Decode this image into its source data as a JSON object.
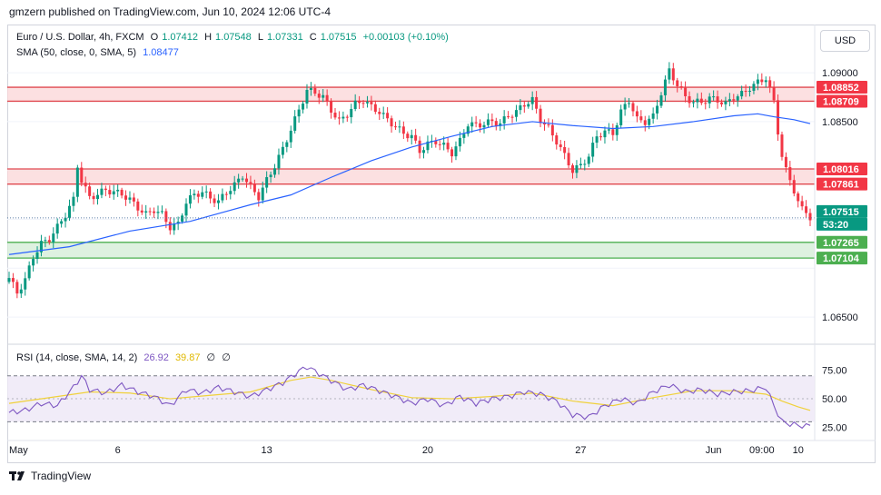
{
  "header": {
    "published_text": "gmzern published on TradingView.com, Jun 10, 2024 12:06 UTC-4"
  },
  "legend": {
    "symbol": "Euro / U.S. Dollar, 4h, FXCM",
    "open_label": "O",
    "open": "1.07412",
    "high_label": "H",
    "high": "1.07548",
    "low_label": "L",
    "low": "1.07331",
    "close_label": "C",
    "close": "1.07515",
    "change": "+0.00103 (+0.10%)",
    "sma_label": "SMA (50, close, 0, SMA, 5)",
    "sma_value": "1.08477",
    "rsi_label": "RSI (14, close, SMA, 14, 2)",
    "rsi_value": "26.92",
    "rsi_ma_value": "39.87",
    "rsi_extra1": "∅",
    "rsi_extra2": "∅"
  },
  "currency_button": "USD",
  "footer": {
    "brand": "TradingView"
  },
  "colors": {
    "up": "#089981",
    "down": "#f23645",
    "sma": "#2962ff",
    "resistance_fill": "#fbd5d7",
    "resistance_line": "#e0484f",
    "support_fill": "#d3ecd6",
    "support_line": "#4caf50",
    "rsi_line": "#7e57c2",
    "rsi_ma": "#f0d13a",
    "rsi_band": "#ede7f6"
  },
  "chart_data": [
    {
      "type": "candlestick",
      "title": "Euro / U.S. Dollar, 4h, FXCM",
      "ylim": [
        1.0625,
        1.0915
      ],
      "x_tick_labels": [
        "May",
        "6",
        "13",
        "20",
        "27",
        "Jun",
        "09:00",
        "10"
      ],
      "y_tick_labels": [
        "1.09000",
        "1.08500",
        "1.06500"
      ],
      "price_labels": [
        {
          "value": "1.08852",
          "kind": "resistance"
        },
        {
          "value": "1.08709",
          "kind": "resistance"
        },
        {
          "value": "1.08016",
          "kind": "resistance"
        },
        {
          "value": "1.07861",
          "kind": "resistance"
        },
        {
          "value": "1.07515",
          "kind": "current"
        },
        {
          "value": "53:20",
          "kind": "countdown"
        },
        {
          "value": "1.07265",
          "kind": "support"
        },
        {
          "value": "1.07104",
          "kind": "support"
        }
      ],
      "zones": [
        {
          "kind": "resistance",
          "top": 1.08852,
          "bottom": 1.08709
        },
        {
          "kind": "resistance",
          "top": 1.08016,
          "bottom": 1.07861
        },
        {
          "kind": "support",
          "top": 1.07265,
          "bottom": 1.07104
        }
      ],
      "current_price": 1.07515,
      "close_path": [
        [
          0,
          1.069
        ],
        [
          2,
          1.0675
        ],
        [
          4,
          1.0688
        ],
        [
          6,
          1.0712
        ],
        [
          8,
          1.0725
        ],
        [
          10,
          1.073
        ],
        [
          12,
          1.0742
        ],
        [
          14,
          1.0755
        ],
        [
          16,
          1.077
        ],
        [
          17,
          1.0805
        ],
        [
          18,
          1.079
        ],
        [
          20,
          1.0772
        ],
        [
          22,
          1.0776
        ],
        [
          24,
          1.078
        ],
        [
          26,
          1.0778
        ],
        [
          28,
          1.0776
        ],
        [
          30,
          1.077
        ],
        [
          32,
          1.0762
        ],
        [
          34,
          1.0755
        ],
        [
          36,
          1.076
        ],
        [
          38,
          1.0755
        ],
        [
          40,
          1.0742
        ],
        [
          42,
          1.0745
        ],
        [
          44,
          1.0768
        ],
        [
          46,
          1.0775
        ],
        [
          48,
          1.0778
        ],
        [
          50,
          1.0772
        ],
        [
          52,
          1.0768
        ],
        [
          54,
          1.0778
        ],
        [
          56,
          1.0785
        ],
        [
          58,
          1.0795
        ],
        [
          60,
          1.0783
        ],
        [
          62,
          1.0773
        ],
        [
          64,
          1.079
        ],
        [
          66,
          1.0805
        ],
        [
          68,
          1.0822
        ],
        [
          70,
          1.0842
        ],
        [
          72,
          1.0862
        ],
        [
          74,
          1.0882
        ],
        [
          76,
          1.088
        ],
        [
          78,
          1.0875
        ],
        [
          80,
          1.0862
        ],
        [
          82,
          1.085
        ],
        [
          84,
          1.0858
        ],
        [
          86,
          1.0868
        ],
        [
          88,
          1.0872
        ],
        [
          90,
          1.0865
        ],
        [
          92,
          1.086
        ],
        [
          94,
          1.0852
        ],
        [
          96,
          1.0845
        ],
        [
          98,
          1.0838
        ],
        [
          100,
          1.0835
        ],
        [
          102,
          1.082
        ],
        [
          104,
          1.0827
        ],
        [
          106,
          1.083
        ],
        [
          108,
          1.0825
        ],
        [
          110,
          1.0818
        ],
        [
          112,
          1.083
        ],
        [
          114,
          1.0848
        ],
        [
          116,
          1.0846
        ],
        [
          118,
          1.0848
        ],
        [
          120,
          1.085
        ],
        [
          122,
          1.0848
        ],
        [
          124,
          1.0856
        ],
        [
          126,
          1.086
        ],
        [
          128,
          1.0868
        ],
        [
          130,
          1.0872
        ],
        [
          132,
          1.0852
        ],
        [
          134,
          1.0843
        ],
        [
          136,
          1.083
        ],
        [
          138,
          1.0815
        ],
        [
          140,
          1.08
        ],
        [
          142,
          1.0805
        ],
        [
          144,
          1.0815
        ],
        [
          146,
          1.0835
        ],
        [
          148,
          1.084
        ],
        [
          150,
          1.0838
        ],
        [
          152,
          1.086
        ],
        [
          154,
          1.0872
        ],
        [
          156,
          1.0852
        ],
        [
          158,
          1.085
        ],
        [
          160,
          1.0855
        ],
        [
          162,
          1.088
        ],
        [
          164,
          1.0902
        ],
        [
          166,
          1.0888
        ],
        [
          168,
          1.0875
        ],
        [
          170,
          1.087
        ],
        [
          172,
          1.087
        ],
        [
          174,
          1.0874
        ],
        [
          176,
          1.0872
        ],
        [
          178,
          1.0868
        ],
        [
          180,
          1.0875
        ],
        [
          182,
          1.0878
        ],
        [
          184,
          1.0885
        ],
        [
          186,
          1.089
        ],
        [
          188,
          1.0895
        ],
        [
          190,
          1.087
        ],
        [
          191,
          1.084
        ],
        [
          192,
          1.0815
        ],
        [
          193,
          1.08
        ],
        [
          194,
          1.079
        ],
        [
          195,
          1.078
        ],
        [
          196,
          1.0768
        ],
        [
          197,
          1.076
        ],
        [
          198,
          1.0758
        ],
        [
          199,
          1.0752
        ]
      ],
      "sma_path": [
        [
          0,
          1.0714
        ],
        [
          15,
          1.0722
        ],
        [
          30,
          1.0738
        ],
        [
          45,
          1.0748
        ],
        [
          60,
          1.0765
        ],
        [
          70,
          1.0775
        ],
        [
          80,
          1.0793
        ],
        [
          90,
          1.081
        ],
        [
          100,
          1.0824
        ],
        [
          110,
          1.0835
        ],
        [
          120,
          1.0845
        ],
        [
          130,
          1.085
        ],
        [
          140,
          1.0846
        ],
        [
          150,
          1.0843
        ],
        [
          160,
          1.0845
        ],
        [
          170,
          1.085
        ],
        [
          180,
          1.0856
        ],
        [
          186,
          1.0858
        ],
        [
          190,
          1.0855
        ],
        [
          195,
          1.0852
        ],
        [
          199,
          1.0848
        ]
      ]
    },
    {
      "type": "line",
      "title": "RSI (14, close, SMA, 14, 2)",
      "ylim": [
        16,
        92
      ],
      "y_tick_labels": [
        "75.00",
        "50.00",
        "25.00"
      ],
      "bands": [
        70,
        30
      ],
      "series": [
        {
          "name": "RSI",
          "values": [
            [
              0,
              38
            ],
            [
              4,
              40
            ],
            [
              8,
              46
            ],
            [
              12,
              44
            ],
            [
              16,
              60
            ],
            [
              18,
              70
            ],
            [
              20,
              58
            ],
            [
              24,
              55
            ],
            [
              28,
              62
            ],
            [
              32,
              56
            ],
            [
              36,
              52
            ],
            [
              40,
              44
            ],
            [
              44,
              58
            ],
            [
              48,
              55
            ],
            [
              52,
              60
            ],
            [
              56,
              56
            ],
            [
              60,
              52
            ],
            [
              64,
              58
            ],
            [
              68,
              64
            ],
            [
              72,
              74
            ],
            [
              74,
              78
            ],
            [
              76,
              74
            ],
            [
              80,
              66
            ],
            [
              84,
              58
            ],
            [
              88,
              62
            ],
            [
              92,
              57
            ],
            [
              96,
              52
            ],
            [
              100,
              46
            ],
            [
              104,
              50
            ],
            [
              108,
              44
            ],
            [
              112,
              52
            ],
            [
              116,
              46
            ],
            [
              120,
              50
            ],
            [
              124,
              52
            ],
            [
              128,
              56
            ],
            [
              132,
              54
            ],
            [
              136,
              48
            ],
            [
              140,
              36
            ],
            [
              144,
              34
            ],
            [
              148,
              44
            ],
            [
              152,
              50
            ],
            [
              156,
              46
            ],
            [
              160,
              56
            ],
            [
              164,
              62
            ],
            [
              168,
              56
            ],
            [
              172,
              58
            ],
            [
              176,
              54
            ],
            [
              180,
              56
            ],
            [
              184,
              57
            ],
            [
              188,
              60
            ],
            [
              190,
              44
            ],
            [
              192,
              30
            ],
            [
              194,
              28
            ],
            [
              196,
              27
            ],
            [
              198,
              26
            ],
            [
              199,
              27
            ]
          ]
        },
        {
          "name": "RSI MA",
          "values": [
            [
              0,
              46
            ],
            [
              20,
              56
            ],
            [
              30,
              55
            ],
            [
              40,
              50
            ],
            [
              50,
              53
            ],
            [
              60,
              56
            ],
            [
              70,
              66
            ],
            [
              75,
              69
            ],
            [
              80,
              66
            ],
            [
              90,
              58
            ],
            [
              100,
              51
            ],
            [
              110,
              50
            ],
            [
              120,
              52
            ],
            [
              130,
              55
            ],
            [
              140,
              48
            ],
            [
              150,
              44
            ],
            [
              160,
              51
            ],
            [
              170,
              57
            ],
            [
              180,
              57
            ],
            [
              188,
              54
            ],
            [
              192,
              48
            ],
            [
              196,
              43
            ],
            [
              199,
              39.87
            ]
          ]
        }
      ]
    }
  ]
}
